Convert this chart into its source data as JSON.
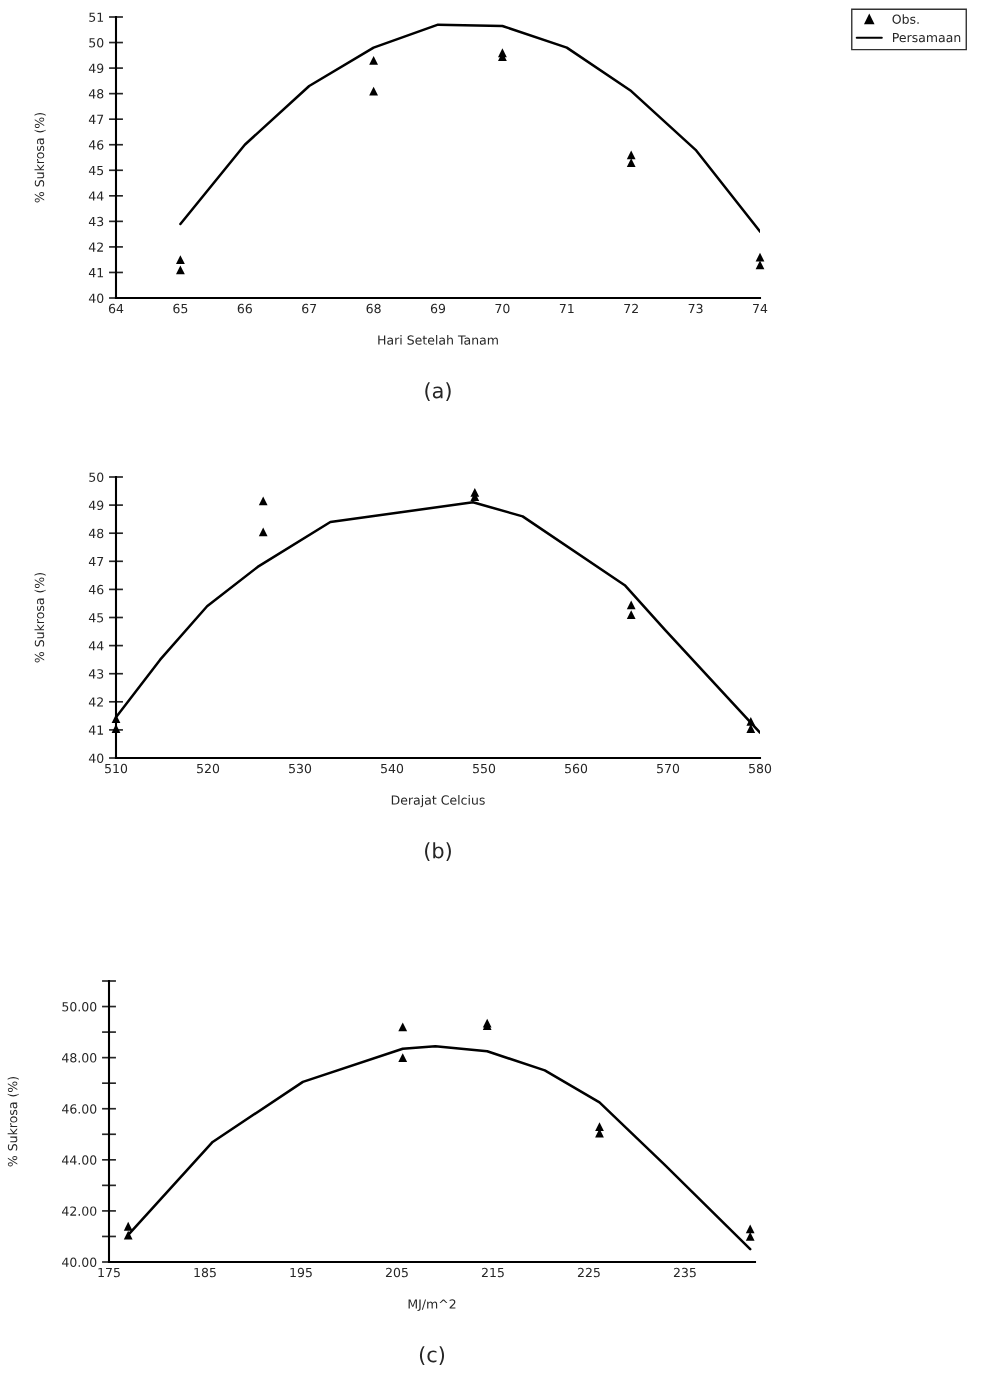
{
  "chart_data": [
    {
      "type": "line",
      "title": "(a)",
      "xlabel": "Hari Setelah Tanam",
      "ylabel": "% Sukrosa (%)",
      "xlim": [
        64,
        74
      ],
      "xticks": [
        64,
        65,
        66,
        67,
        68,
        69,
        70,
        71,
        72,
        73,
        74
      ],
      "ylim": [
        40,
        51
      ],
      "yticks": [
        40,
        41,
        42,
        43,
        44,
        45,
        46,
        47,
        48,
        49,
        50,
        51
      ],
      "grid": false,
      "legend": "top right",
      "series": [
        {
          "name": "Obs.",
          "type": "scatter",
          "marker": "triangle",
          "color": "#000000",
          "x": [
            65,
            65,
            68,
            68,
            70,
            70,
            72,
            72,
            74,
            74
          ],
          "values": [
            41.5,
            41.1,
            49.3,
            48.1,
            49.6,
            49.45,
            45.6,
            45.3,
            41.6,
            41.3
          ]
        },
        {
          "name": "Persamaan",
          "color": "#000000",
          "x": [
            65,
            66,
            67,
            68,
            69,
            70,
            71,
            72,
            73,
            74
          ],
          "values": [
            42.9,
            46.0,
            48.3,
            49.8,
            50.7,
            50.65,
            49.8,
            48.1,
            45.8,
            42.6
          ]
        }
      ]
    },
    {
      "type": "line",
      "title": "(b)",
      "xlabel": "Derajat Celcius",
      "ylabel": "% Sukrosa (%)",
      "xlim": [
        510,
        580
      ],
      "xticks": [
        510,
        520,
        530,
        540,
        550,
        560,
        570,
        580
      ],
      "ylim": [
        40,
        50
      ],
      "yticks": [
        40,
        41,
        42,
        43,
        44,
        45,
        46,
        47,
        48,
        49,
        50
      ],
      "grid": false,
      "series": [
        {
          "type": "scatter",
          "marker": "triangle",
          "color": "#000000",
          "x": [
            510,
            510,
            526,
            526,
            549,
            549,
            566,
            566,
            579,
            579
          ],
          "values": [
            41.4,
            41.05,
            49.15,
            48.05,
            49.45,
            49.3,
            45.45,
            45.1,
            41.3,
            41.05
          ]
        },
        {
          "color": "#000000",
          "x": [
            510,
            514.8,
            519.9,
            525.4,
            533.3,
            548.8,
            554.2,
            565.3,
            569.7,
            580
          ],
          "values": [
            41.45,
            43.5,
            45.4,
            46.8,
            48.4,
            49.1,
            48.6,
            46.15,
            44.55,
            40.9
          ]
        }
      ]
    },
    {
      "type": "line",
      "title": "(c)",
      "xlabel": "MJ/m^2",
      "ylabel": "% Sukrosa (%)",
      "xlim": [
        175,
        242.3
      ],
      "xticks": [
        175,
        185,
        195,
        205,
        215,
        225,
        235
      ],
      "ylim": [
        40,
        51
      ],
      "yticks": [
        {
          "value": 40,
          "label": "40.00"
        },
        {
          "value": 41,
          "label": null
        },
        {
          "value": 42,
          "label": "42.00"
        },
        {
          "value": 43,
          "label": null
        },
        {
          "value": 44,
          "label": "44.00"
        },
        {
          "value": 45,
          "label": null
        },
        {
          "value": 46,
          "label": "46.00"
        },
        {
          "value": 47,
          "label": null
        },
        {
          "value": 48,
          "label": "48.00"
        },
        {
          "value": 49,
          "label": null
        },
        {
          "value": 50,
          "label": "50.00"
        },
        {
          "value": 51,
          "label": null
        }
      ],
      "grid": false,
      "series": [
        {
          "type": "scatter",
          "marker": "triangle",
          "color": "#000000",
          "x": [
            177,
            177,
            205.6,
            205.6,
            214.4,
            214.4,
            226.1,
            226.1,
            241.8,
            241.8
          ],
          "values": [
            41.4,
            41.05,
            49.2,
            48.0,
            49.35,
            49.25,
            45.3,
            45.05,
            41.3,
            41.0
          ]
        },
        {
          "color": "#000000",
          "x": [
            177.1,
            185.8,
            195.2,
            205.6,
            209,
            214.4,
            220.4,
            226.1,
            232.9,
            241.8
          ],
          "values": [
            41.1,
            44.7,
            47.05,
            48.35,
            48.45,
            48.25,
            47.5,
            46.25,
            43.8,
            40.5
          ]
        }
      ]
    }
  ]
}
